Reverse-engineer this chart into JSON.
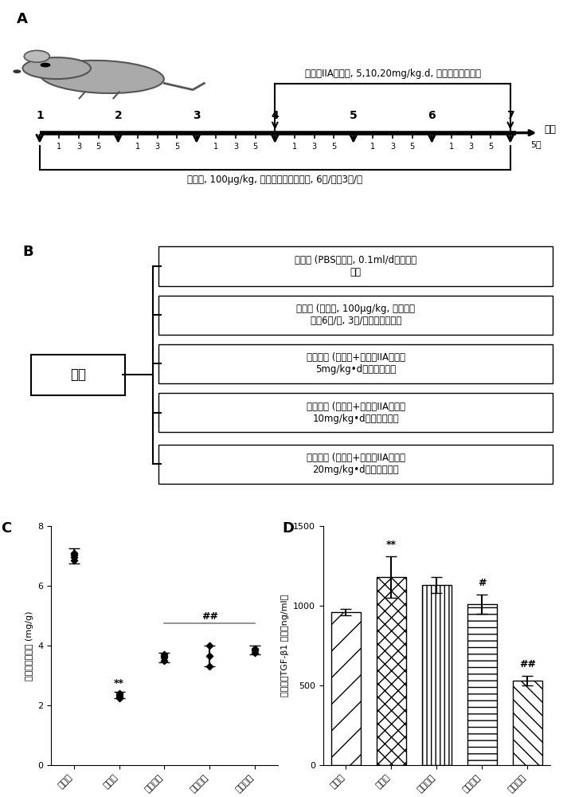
{
  "panel_A_label": "A",
  "panel_B_label": "B",
  "panel_C_label": "C",
  "panel_D_label": "D",
  "timeline_weeks": [
    "1",
    "2",
    "3",
    "4",
    "5",
    "6",
    "7"
  ],
  "timeline_note_top": "丹参酮IIA磺酸钠, 5,10,20mg/kg.d, 每日腹腔注射一次",
  "timeline_note_bottom": "雨蛙素, 100μg/kg, 每小时腹腔注射一次, 6次/日，3天/周",
  "timeline_death": "死亡",
  "timeline_days": "5天",
  "subdays": [
    "1",
    "3",
    "5"
  ],
  "box_categories": [
    "对照组 (PBS缓冲液, 0.1ml/d，腹腔注\n射）",
    "模型组 (雨蛙素, 100μg/kg, 每小时一\n次，6次/日, 3日/周，腹腔注射）",
    "低剂量组 (雨蛙素+丹参酮IIA磺酸钠\n5mg/kg•d，腹腔注射）",
    "中剂量组 (雨蛙素+丹参酮IIA磺酸钠\n10mg/kg•d，腹腔注射）",
    "高剂量组 (雨蛙素+丹参酮IIA磺酸钠\n20mg/kg•d，腹腔注射）"
  ],
  "group_label": "分组",
  "plot_C_ylabel": "小鼠胰腺体重比 (mg/g)",
  "plot_C_categories": [
    "正常组",
    "模型组",
    "低剂量组",
    "中剂量组",
    "高剂量组"
  ],
  "plot_C_means": [
    7.0,
    2.35,
    3.6,
    3.65,
    3.85
  ],
  "plot_C_errors": [
    0.25,
    0.1,
    0.15,
    0.35,
    0.15
  ],
  "plot_C_ylim": [
    0,
    8
  ],
  "plot_C_yticks": [
    0,
    2,
    4,
    6,
    8
  ],
  "plot_D_ylabel": "小鼠血清TGF-β1 水平（ng/ml）",
  "plot_D_categories": [
    "正常组",
    "模型组",
    "低剂量组",
    "中剂量组",
    "高剂量组"
  ],
  "plot_D_means": [
    960,
    1180,
    1130,
    1010,
    530
  ],
  "plot_D_errors": [
    20,
    130,
    50,
    60,
    30
  ],
  "plot_D_ylim": [
    0,
    1500
  ],
  "plot_D_yticks": [
    0,
    500,
    1000,
    1500
  ],
  "font_color": "#000000",
  "bg_color": "#ffffff"
}
